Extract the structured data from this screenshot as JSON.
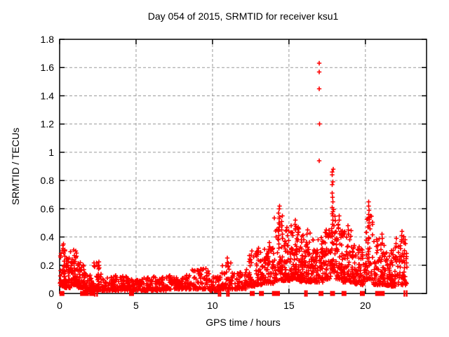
{
  "page": {
    "background": "#ffffff"
  },
  "chart_data": {
    "type": "scatter",
    "title": "Day 054 of 2015, SRMTID for receiver ksu1",
    "xlabel": "GPS time / hours",
    "ylabel": "SRMTID / TECUs",
    "xlim": [
      0,
      24
    ],
    "ylim": [
      0,
      1.8
    ],
    "xticks": [
      0,
      5,
      10,
      15,
      20
    ],
    "xtick_labels": [
      "0",
      "5",
      "10",
      "15",
      "20"
    ],
    "yticks": [
      0,
      0.2,
      0.4,
      0.6,
      0.8,
      1.0,
      1.2,
      1.4,
      1.6,
      1.8
    ],
    "ytick_labels": [
      "0",
      "0.2",
      "0.4",
      "0.6",
      "0.8",
      "1",
      "1.2",
      "1.4",
      "1.6",
      "1.8"
    ],
    "grid": true,
    "grid_style": "dashed",
    "legend": "none",
    "marker": "plus",
    "zero_marker": "filled-square",
    "colors": {
      "marker": "#ff0000",
      "grid": "#9a9a9a",
      "border": "#000000",
      "text": "#000000"
    },
    "outlier_points": [
      [
        16.98,
        1.63
      ],
      [
        16.98,
        1.57
      ],
      [
        16.99,
        1.45
      ],
      [
        17.0,
        1.2
      ],
      [
        16.97,
        0.94
      ]
    ],
    "spike_columns": [
      {
        "x": 11.0,
        "ys": [
          0.25,
          0.22,
          0.19
        ]
      },
      {
        "x": 12.55,
        "ys": [
          0.3,
          0.27
        ]
      },
      {
        "x": 13.05,
        "ys": [
          0.32,
          0.29
        ]
      },
      {
        "x": 13.7,
        "ys": [
          0.36,
          0.33,
          0.3
        ]
      },
      {
        "x": 14.35,
        "ys": [
          0.62,
          0.6,
          0.57,
          0.53,
          0.5,
          0.47,
          0.44,
          0.41,
          0.38,
          0.35,
          0.32
        ]
      },
      {
        "x": 14.55,
        "ys": [
          0.55,
          0.51,
          0.48,
          0.45,
          0.42,
          0.39
        ]
      },
      {
        "x": 15.4,
        "ys": [
          0.52,
          0.49,
          0.46
        ]
      },
      {
        "x": 16.2,
        "ys": [
          0.45,
          0.42
        ]
      },
      {
        "x": 17.85,
        "ys": [
          0.88,
          0.86,
          0.84,
          0.79,
          0.77,
          0.71,
          0.68,
          0.65,
          0.61,
          0.58,
          0.55,
          0.52,
          0.49,
          0.46,
          0.43
        ]
      },
      {
        "x": 18.25,
        "ys": [
          0.55,
          0.52,
          0.49,
          0.46
        ]
      },
      {
        "x": 18.9,
        "ys": [
          0.48,
          0.45,
          0.42
        ]
      },
      {
        "x": 20.2,
        "ys": [
          0.65,
          0.62,
          0.59,
          0.56,
          0.53,
          0.5,
          0.47
        ]
      },
      {
        "x": 21.1,
        "ys": [
          0.42,
          0.39
        ]
      },
      {
        "x": 22.4,
        "ys": [
          0.44,
          0.41,
          0.38
        ]
      }
    ],
    "density_bands_format": "[x_start_hr, x_end_hr, n_points, y_min, y_max, skew_power]",
    "density_bands": [
      [
        0.02,
        0.35,
        45,
        0.05,
        0.36,
        2.0
      ],
      [
        0.3,
        0.7,
        55,
        0.04,
        0.26,
        2.0
      ],
      [
        0.7,
        1.15,
        65,
        0.06,
        0.31,
        1.8
      ],
      [
        1.15,
        1.6,
        55,
        0.04,
        0.22,
        2.0
      ],
      [
        1.6,
        2.1,
        50,
        0.02,
        0.15,
        2.0
      ],
      [
        2.1,
        2.75,
        60,
        0.02,
        0.23,
        2.2
      ],
      [
        2.75,
        3.5,
        55,
        0.02,
        0.12,
        1.8
      ],
      [
        3.5,
        4.5,
        65,
        0.02,
        0.13,
        1.8
      ],
      [
        4.5,
        5.5,
        75,
        0.02,
        0.1,
        1.8
      ],
      [
        5.5,
        7.0,
        100,
        0.02,
        0.12,
        1.8
      ],
      [
        7.0,
        8.5,
        100,
        0.03,
        0.13,
        1.8
      ],
      [
        8.5,
        9.8,
        85,
        0.03,
        0.18,
        2.0
      ],
      [
        9.8,
        10.6,
        55,
        0.02,
        0.12,
        1.8
      ],
      [
        10.6,
        11.2,
        45,
        0.03,
        0.22,
        2.2
      ],
      [
        11.2,
        12.2,
        65,
        0.03,
        0.15,
        1.8
      ],
      [
        12.2,
        12.8,
        50,
        0.05,
        0.27,
        2.0
      ],
      [
        12.8,
        13.4,
        60,
        0.06,
        0.31,
        2.0
      ],
      [
        13.4,
        14.0,
        60,
        0.07,
        0.35,
        2.0
      ],
      [
        14.0,
        14.6,
        65,
        0.09,
        0.55,
        2.2
      ],
      [
        14.6,
        15.1,
        60,
        0.09,
        0.5,
        2.2
      ],
      [
        15.1,
        15.7,
        85,
        0.1,
        0.5,
        2.0
      ],
      [
        15.7,
        16.5,
        95,
        0.08,
        0.43,
        2.0
      ],
      [
        16.5,
        17.2,
        80,
        0.08,
        0.4,
        2.0
      ],
      [
        17.2,
        17.75,
        60,
        0.1,
        0.45,
        2.0
      ],
      [
        17.75,
        18.05,
        35,
        0.15,
        0.6,
        2.0
      ],
      [
        18.05,
        18.5,
        55,
        0.1,
        0.5,
        2.0
      ],
      [
        18.5,
        19.3,
        85,
        0.08,
        0.46,
        2.0
      ],
      [
        19.3,
        20.0,
        70,
        0.06,
        0.34,
        2.0
      ],
      [
        20.0,
        20.5,
        50,
        0.1,
        0.55,
        2.2
      ],
      [
        20.5,
        21.3,
        85,
        0.06,
        0.4,
        2.0
      ],
      [
        21.3,
        22.0,
        80,
        0.05,
        0.33,
        2.0
      ],
      [
        22.0,
        22.75,
        65,
        0.06,
        0.42,
        2.0
      ]
    ],
    "zero_markers": {
      "squares_x_hours": [
        0.15,
        1.5,
        1.75,
        2.1,
        4.7,
        12.6,
        13.2,
        14.05,
        14.25,
        17.1,
        17.85,
        18.6,
        19.8,
        20.8,
        21.1
      ],
      "bars_x_hours": [
        2.3,
        2.45,
        10.4,
        10.52,
        10.95,
        11.07,
        16.05,
        16.17,
        22.55,
        22.7
      ]
    }
  }
}
